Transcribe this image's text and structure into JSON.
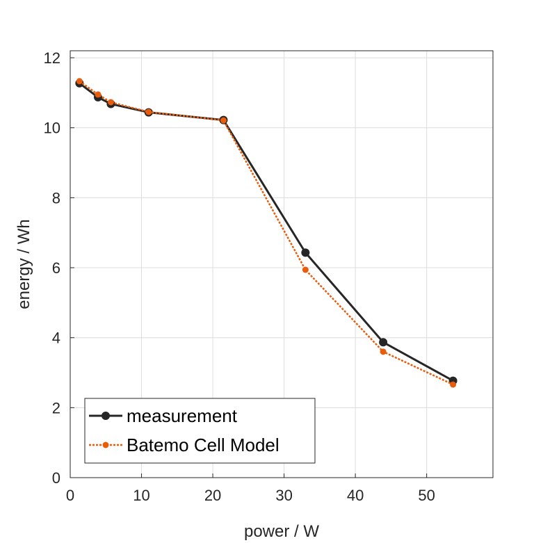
{
  "chart_data": {
    "type": "line",
    "title": "",
    "xlabel": "power / W",
    "ylabel": "energy / Wh",
    "xlim": [
      0,
      59.3
    ],
    "ylim": [
      0,
      12.2
    ],
    "xticks": [
      0,
      10,
      20,
      30,
      40,
      50
    ],
    "yticks": [
      0,
      2,
      4,
      6,
      8,
      10,
      12
    ],
    "grid": true,
    "legend_position": "bottom-left",
    "series": [
      {
        "name": "measurement",
        "color": "#262626",
        "style": "solid",
        "x": [
          1.3,
          3.9,
          5.7,
          11.0,
          21.5,
          33.0,
          43.9,
          53.7
        ],
        "y": [
          11.27,
          10.87,
          10.68,
          10.44,
          10.22,
          6.43,
          3.87,
          2.77
        ]
      },
      {
        "name": "Batemo Cell Model",
        "color": "#e85c0d",
        "style": "dotted",
        "x": [
          1.3,
          3.9,
          5.7,
          11.0,
          21.5,
          33.0,
          43.9,
          53.7
        ],
        "y": [
          11.33,
          10.95,
          10.73,
          10.45,
          10.21,
          5.94,
          3.6,
          2.66
        ]
      }
    ]
  }
}
